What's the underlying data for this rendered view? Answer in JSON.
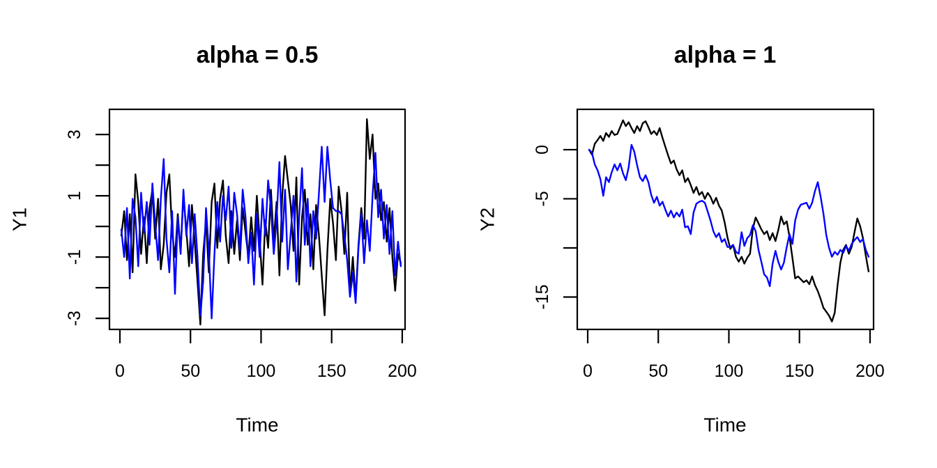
{
  "figure": {
    "background": "#ffffff",
    "series_colors": [
      "#000000",
      "#0000ff"
    ]
  },
  "chart_data": [
    {
      "type": "line",
      "title": "alpha = 0.5",
      "xlabel": "Time",
      "ylabel": "Y1",
      "xlim": [
        -7.4,
        202.0
      ],
      "ylim": [
        -3.36,
        3.82
      ],
      "x_start": 1,
      "x_step": 2,
      "x_ticks": [
        0,
        50,
        100,
        150,
        200
      ],
      "x_tick_labels": [
        "0",
        "50",
        "100",
        "150",
        "200"
      ],
      "y_ticks": [
        3,
        2,
        1,
        0,
        -1,
        -2,
        -3
      ],
      "y_tick_labels": [
        "3",
        "",
        "1",
        "",
        "-1",
        "",
        "-3"
      ],
      "grid": false,
      "legend": "none",
      "series": [
        {
          "name": "black",
          "color": "#000000",
          "values": [
            -0.3,
            0.5,
            -1.1,
            0.4,
            -1.5,
            1.7,
            0.8,
            -0.9,
            0.3,
            -1.2,
            0.6,
            1.2,
            -0.4,
            0.9,
            -1.4,
            -0.6,
            1.1,
            1.7,
            -0.2,
            -1.0,
            0.4,
            -0.8,
            1.0,
            -0.1,
            -1.3,
            0.7,
            -0.5,
            -1.8,
            -3.2,
            -0.9,
            0.2,
            -1.5,
            0.8,
            1.4,
            -0.7,
            0.9,
            1.5,
            -0.3,
            -1.2,
            0.5,
            -0.9,
            0.2,
            -1.1,
            0.6,
            -0.2,
            -1.0,
            0.3,
            -0.8,
            1.0,
            -0.4,
            -1.9,
            0.2,
            -0.7,
            1.2,
            -0.5,
            0.8,
            -1.6,
            1.0,
            2.3,
            1.5,
            0.7,
            -0.8,
            1.6,
            -1.9,
            0.3,
            1.2,
            -0.6,
            0.4,
            -1.4,
            0.7,
            -0.3,
            -1.6,
            -2.9,
            -0.8,
            0.9,
            0.1,
            -1.1,
            1.3,
            0.5,
            -0.9,
            1.1,
            -2.2,
            -1.0,
            -2.4,
            -0.6,
            0.6,
            -0.4,
            3.5,
            2.2,
            3.0,
            0.9,
            1.4,
            0.2,
            0.8,
            -0.5,
            0.6,
            -1.0,
            -2.1,
            -0.9,
            -1.2
          ]
        },
        {
          "name": "blue",
          "color": "#0000ff",
          "values": [
            -0.1,
            -1.0,
            0.6,
            -1.7,
            0.9,
            0.3,
            -1.3,
            1.1,
            -0.2,
            0.8,
            -0.6,
            1.4,
            0.1,
            -1.1,
            0.9,
            2.2,
            -0.4,
            -1.5,
            0.5,
            -2.2,
            0.3,
            -0.9,
            1.2,
            -0.3,
            0.7,
            -1.2,
            0.4,
            -1.0,
            -2.9,
            -1.8,
            0.6,
            -0.8,
            -3.0,
            -0.9,
            0.8,
            -0.5,
            1.0,
            0.2,
            1.3,
            -0.7,
            1.1,
            0.4,
            -0.8,
            1.2,
            0.3,
            -1.2,
            -0.2,
            -1.9,
            0.4,
            -1.0,
            0.9,
            -0.3,
            1.5,
            0.6,
            -0.9,
            0.2,
            2.1,
            -0.5,
            1.2,
            -1.4,
            -0.2,
            1.0,
            -1.8,
            0.3,
            1.9,
            -0.6,
            0.9,
            -1.3,
            0.5,
            -0.4,
            1.1,
            2.6,
            0.8,
            2.6,
            1.5,
            0.6,
            0.5,
            0.5,
            0.4,
            -0.3,
            -1.1,
            -2.3,
            -1.5,
            -2.5,
            -0.7,
            0.4,
            -1.2,
            0.2,
            -0.8,
            1.0,
            2.4,
            0.3,
            1.2,
            -0.4,
            0.7,
            -0.9,
            0.5,
            -1.6,
            -0.5,
            -1.3
          ]
        }
      ]
    },
    {
      "type": "line",
      "title": "alpha = 1",
      "xlabel": "Time",
      "ylabel": "Y2",
      "xlim": [
        -7.4,
        202.5
      ],
      "ylim": [
        -18.3,
        4.11
      ],
      "x_start": 1,
      "x_step": 2,
      "x_ticks": [
        0,
        50,
        100,
        150,
        200
      ],
      "x_tick_labels": [
        "0",
        "50",
        "100",
        "150",
        "200"
      ],
      "y_ticks": [
        0,
        -5,
        -10,
        -15
      ],
      "y_tick_labels": [
        "0",
        "-5",
        "",
        "-15"
      ],
      "grid": false,
      "legend": "none",
      "series": [
        {
          "name": "black",
          "color": "#000000",
          "values": [
            0.0,
            -0.5,
            0.6,
            1.0,
            1.4,
            0.9,
            1.7,
            1.3,
            1.9,
            1.5,
            1.6,
            2.3,
            3.0,
            2.4,
            2.8,
            2.2,
            1.7,
            2.4,
            1.9,
            2.7,
            2.9,
            2.3,
            1.6,
            1.9,
            1.5,
            2.2,
            1.2,
            0.3,
            -0.6,
            -1.4,
            -1.1,
            -2.0,
            -2.6,
            -2.1,
            -3.3,
            -2.9,
            -3.6,
            -4.4,
            -3.8,
            -4.6,
            -4.3,
            -5.0,
            -4.4,
            -4.8,
            -5.5,
            -4.9,
            -5.7,
            -6.2,
            -7.4,
            -8.9,
            -10.1,
            -9.7,
            -10.9,
            -11.4,
            -10.9,
            -11.6,
            -11.0,
            -10.6,
            -8.0,
            -6.9,
            -7.5,
            -8.1,
            -8.6,
            -8.3,
            -9.2,
            -8.5,
            -9.3,
            -8.2,
            -6.8,
            -7.6,
            -7.3,
            -8.9,
            -11.0,
            -13.1,
            -12.9,
            -13.2,
            -13.5,
            -13.3,
            -13.7,
            -12.9,
            -13.8,
            -14.4,
            -15.2,
            -16.1,
            -16.5,
            -16.9,
            -17.5,
            -16.6,
            -13.8,
            -11.5,
            -10.2,
            -9.7,
            -10.6,
            -9.9,
            -8.4,
            -7.0,
            -7.8,
            -9.0,
            -10.8,
            -12.4
          ]
        },
        {
          "name": "blue",
          "color": "#0000ff",
          "values": [
            0.0,
            -0.3,
            -1.5,
            -2.1,
            -3.0,
            -4.7,
            -2.8,
            -3.3,
            -2.3,
            -1.5,
            -2.1,
            -1.4,
            -2.4,
            -3.1,
            -1.8,
            0.5,
            -0.2,
            -1.6,
            -2.8,
            -3.2,
            -2.6,
            -3.3,
            -4.6,
            -5.4,
            -4.8,
            -5.7,
            -5.3,
            -6.1,
            -6.8,
            -6.2,
            -6.9,
            -6.4,
            -6.8,
            -6.1,
            -7.9,
            -7.8,
            -8.6,
            -6.4,
            -5.5,
            -5.3,
            -5.2,
            -5.4,
            -6.3,
            -7.2,
            -8.3,
            -8.9,
            -8.5,
            -9.4,
            -9.1,
            -9.9,
            -9.9,
            -9.7,
            -10.4,
            -10.6,
            -8.4,
            -9.8,
            -9.0,
            -8.7,
            -7.7,
            -8.3,
            -10.2,
            -11.4,
            -12.7,
            -13.0,
            -13.9,
            -11.6,
            -10.3,
            -11.4,
            -12.2,
            -11.5,
            -9.9,
            -8.6,
            -9.6,
            -7.2,
            -6.1,
            -5.6,
            -5.5,
            -5.4,
            -6.0,
            -5.4,
            -4.2,
            -3.3,
            -4.8,
            -6.5,
            -8.7,
            -10.0,
            -10.9,
            -10.4,
            -10.7,
            -10.2,
            -10.5,
            -9.8,
            -10.3,
            -9.6,
            -9.2,
            -8.9,
            -9.4,
            -9.1,
            -10.2,
            -10.9
          ]
        }
      ]
    }
  ]
}
